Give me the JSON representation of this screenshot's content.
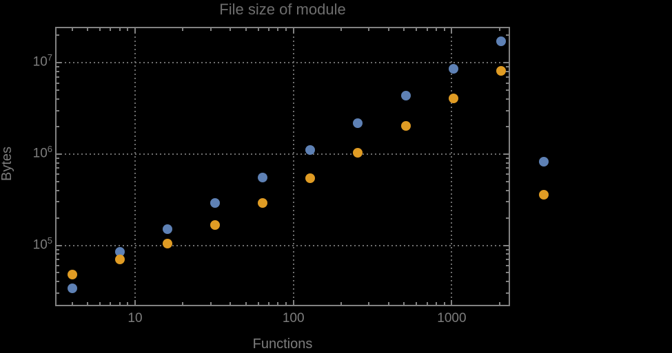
{
  "title": "File size of module",
  "axes": {
    "x": {
      "label": "Functions",
      "scale": "log",
      "tick_labels": [
        {
          "text": "10",
          "value": 10
        },
        {
          "text": "100",
          "value": 100
        },
        {
          "text": "1000",
          "value": 1000
        }
      ]
    },
    "y": {
      "label": "Bytes",
      "scale": "log",
      "tick_labels": [
        {
          "base": "10",
          "exp": "5",
          "value": 100000
        },
        {
          "base": "10",
          "exp": "6",
          "value": 1000000
        },
        {
          "base": "10",
          "exp": "7",
          "value": 10000000
        }
      ]
    }
  },
  "colors": {
    "background": "#000000",
    "frame": "#828282",
    "grid": "#6f6f6f",
    "tick_text": "#7d7d7d",
    "title_text": "#6e6e6e",
    "series1": "#5e81b5",
    "series2": "#e09c24"
  },
  "chart_data": {
    "type": "scatter",
    "title": "File size of module",
    "xlabel": "Functions",
    "ylabel": "Bytes",
    "x_scale": "log",
    "y_scale": "log",
    "xlim": [
      3.2,
      2300
    ],
    "ylim": [
      22000,
      25000000
    ],
    "grid": "dotted lines at decades only",
    "legend": "none",
    "note": "last x pair (~3800) is plotted outside the right edge of the frame",
    "x": [
      4,
      8,
      16,
      32,
      64,
      128,
      256,
      512,
      1024,
      2048,
      3800
    ],
    "series": [
      {
        "name": "series-1-blue",
        "color": "#5e81b5",
        "values": [
          34000,
          85000,
          150000,
          290000,
          550000,
          1100000,
          2170000,
          4350000,
          8600000,
          17200000,
          830000
        ]
      },
      {
        "name": "series-2-orange",
        "color": "#e09c24",
        "values": [
          48000,
          70000,
          105000,
          166000,
          290000,
          540000,
          1040000,
          2050000,
          4070000,
          8100000,
          360000
        ]
      }
    ]
  }
}
